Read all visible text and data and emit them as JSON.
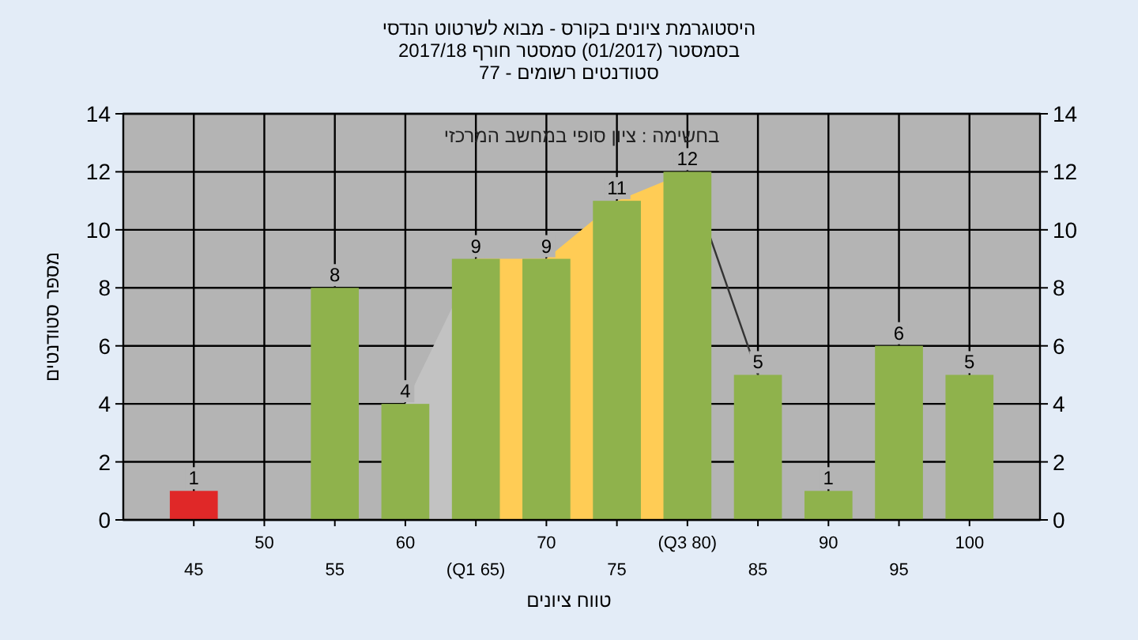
{
  "chart_data": {
    "type": "bar",
    "title": "היסטוגרמת ציונים בקורס - מבוא לשרטוט הנדסי",
    "subtitle": "בסמסטר  (01/2017)  סמסטר חורף 2017/18\nסטודנטים רשומים - 77",
    "xlabel": "טווח ציונים",
    "ylabel": "מספר סטודנטים",
    "categories": [
      "45",
      "50",
      "55",
      "60",
      "(Q1 65)",
      "70",
      "75",
      "(Q3 80)",
      "85",
      "90",
      "95",
      "100"
    ],
    "series": [
      {
        "type": "area",
        "color": "#c2c2c2",
        "values": [
          null,
          null,
          null,
          4,
          9,
          null,
          null,
          null,
          null,
          null,
          null,
          null
        ]
      },
      {
        "type": "line",
        "color": "#333333",
        "values": [
          null,
          null,
          null,
          null,
          null,
          null,
          null,
          12,
          5,
          null,
          null,
          null
        ]
      },
      {
        "type": "area",
        "color": "#ffcc55",
        "values": [
          null,
          null,
          null,
          null,
          9,
          9,
          11,
          12,
          null,
          null,
          null,
          null
        ]
      },
      {
        "colors": [
          "#e02828",
          "#8fb24c",
          "#8fb24c",
          "#8fb24c",
          "#8fb24c",
          "#8fb24c",
          "#8fb24c",
          "#8fb24c",
          "#8fb24c",
          "#8fb24c",
          "#8fb24c",
          "#8fb24c"
        ],
        "values": [
          1,
          0,
          8,
          4,
          9,
          9,
          11,
          12,
          5,
          1,
          6,
          5
        ],
        "value_labels": [
          "1",
          null,
          "8",
          "4",
          "9",
          "9",
          "11",
          "12",
          "5",
          "1",
          "6",
          "5"
        ]
      }
    ],
    "ylim": [
      0,
      14
    ],
    "yticks": [
      0,
      2,
      4,
      6,
      8,
      10,
      12,
      14
    ],
    "y2lim": [
      0,
      14
    ],
    "y2ticks": [
      0,
      2,
      4,
      6,
      8,
      10,
      12,
      14
    ],
    "grid": true,
    "annotations": [
      "בחשימה : ציון סופי במחשב המרכזי"
    ]
  }
}
